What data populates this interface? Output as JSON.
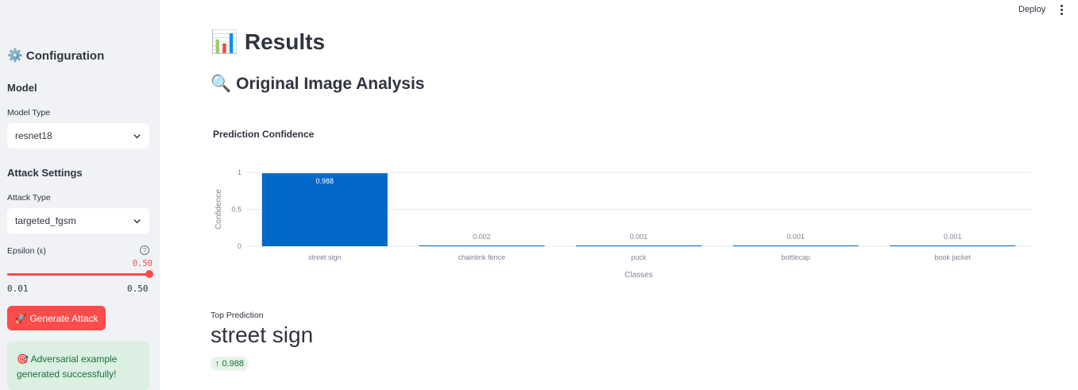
{
  "sidebar": {
    "title": "Configuration",
    "model_heading": "Model",
    "model_type_label": "Model Type",
    "model_type_value": "resnet18",
    "attack_heading": "Attack Settings",
    "attack_type_label": "Attack Type",
    "attack_type_value": "targeted_fgsm",
    "epsilon_label": "Epsilon (ε)",
    "epsilon_value": "0.50",
    "epsilon_min": "0.01",
    "epsilon_max": "0.50",
    "epsilon_fraction": 1.0,
    "generate_button": "Generate Attack",
    "success_message": "Adversarial example generated successfully!"
  },
  "topbar": {
    "deploy_label": "Deploy"
  },
  "main": {
    "title": "Results",
    "subtitle": "Original Image Analysis",
    "chart_title": "Prediction Confidence",
    "metric_label": "Top Prediction",
    "metric_value": "street sign",
    "metric_delta": "0.988"
  },
  "colors": {
    "accent": "#ff4b4b",
    "bar": "#0068c9",
    "success_bg": "#dbefe3",
    "success_text": "#177233"
  },
  "chart_data": {
    "type": "bar",
    "title": "Prediction Confidence",
    "xlabel": "Classes",
    "ylabel": "Confidence",
    "categories": [
      "street sign",
      "chainlink fence",
      "puck",
      "bottlecap",
      "book jacket"
    ],
    "values": [
      0.988,
      0.002,
      0.001,
      0.001,
      0.001
    ],
    "labels": [
      "0.988",
      "0.002",
      "0.001",
      "0.001",
      "0.001"
    ],
    "ylim": [
      0,
      1
    ],
    "yticks": [
      0,
      0.5,
      1
    ],
    "grid": true
  }
}
